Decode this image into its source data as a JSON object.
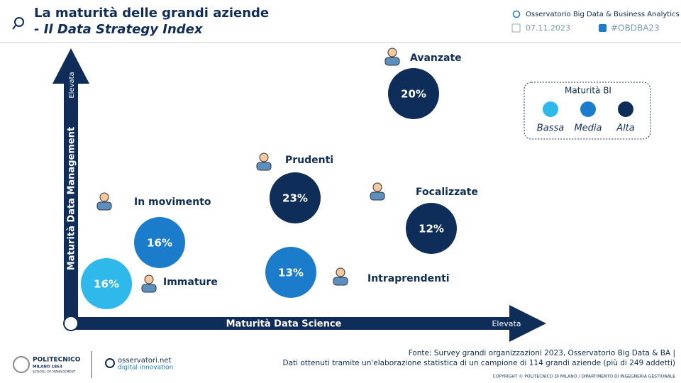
{
  "header": {
    "title": [
      "La maturità delle grandi aziende",
      "- Il Data Strategy Index"
    ],
    "organization": "Osservatorio Big Data & Business Analytics",
    "date": "07.11.2023",
    "hashtag": "#OBDBA23"
  },
  "axes": {
    "y_label": "Maturità Data Management",
    "y_end": "Elevata",
    "x_label": "Maturità Data Science",
    "x_end": "Elevata"
  },
  "legend": {
    "title": "Maturità BI",
    "items": [
      {
        "label": "Bassa",
        "color": "#2fb8ea"
      },
      {
        "label": "Media",
        "color": "#1b7ccc"
      },
      {
        "label": "Alta",
        "color": "#0f2d59"
      }
    ]
  },
  "groups": [
    {
      "name": "Avanzate",
      "value": "20%",
      "color": "#0f2d59"
    },
    {
      "name": "Prudenti",
      "value": "23%",
      "color": "#0f2d59"
    },
    {
      "name": "Focalizzate",
      "value": "12%",
      "color": "#0f2d59"
    },
    {
      "name": "In movimento",
      "value": "16%",
      "color": "#1b7ccc"
    },
    {
      "name": "Immature",
      "value": "16%",
      "color": "#2fb8ea"
    },
    {
      "name": "Intraprendenti",
      "value": "13%",
      "color": "#1b7ccc"
    }
  ],
  "footer": {
    "source": [
      "Fonte: Survey grandi organizzazioni 2023, Osservatorio Big Data & BA |",
      "Dati ottenuti tramite un'elaborazione statistica di un campione di 114 grandi aziende (più di 249 addetti)"
    ],
    "copyright": "COPYRIGHT © POLITECNICO DI MILANO / DIPARTIMENTO DI INGEGNERIA GESTIONALE",
    "logo1": [
      "POLITECNICO",
      "MILANO 1863",
      "SCHOOL OF MANAGEMENT"
    ],
    "logo2": [
      "osservatori.net",
      "digital innovation"
    ]
  }
}
